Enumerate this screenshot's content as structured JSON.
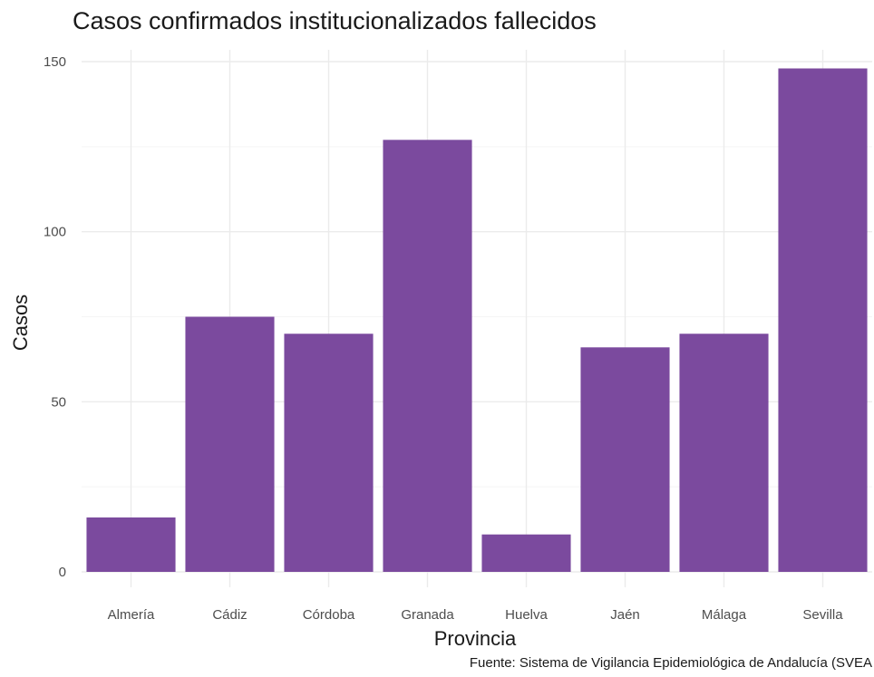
{
  "chart_data": {
    "type": "bar",
    "title": "Casos confirmados institucionalizados fallecidos",
    "xlabel": "Provincia",
    "ylabel": "Casos",
    "caption": "Fuente: Sistema de Vigilancia Epidemiológica de Andalucía (SVEA",
    "categories": [
      "Almería",
      "Cádiz",
      "Córdoba",
      "Granada",
      "Huelva",
      "Jaén",
      "Málaga",
      "Sevilla"
    ],
    "values": [
      16,
      75,
      70,
      127,
      11,
      66,
      70,
      148
    ],
    "ylim": [
      0,
      150
    ],
    "yticks": [
      0,
      50,
      100,
      150
    ],
    "grid": true,
    "bar_color": "#7b4a9e"
  }
}
